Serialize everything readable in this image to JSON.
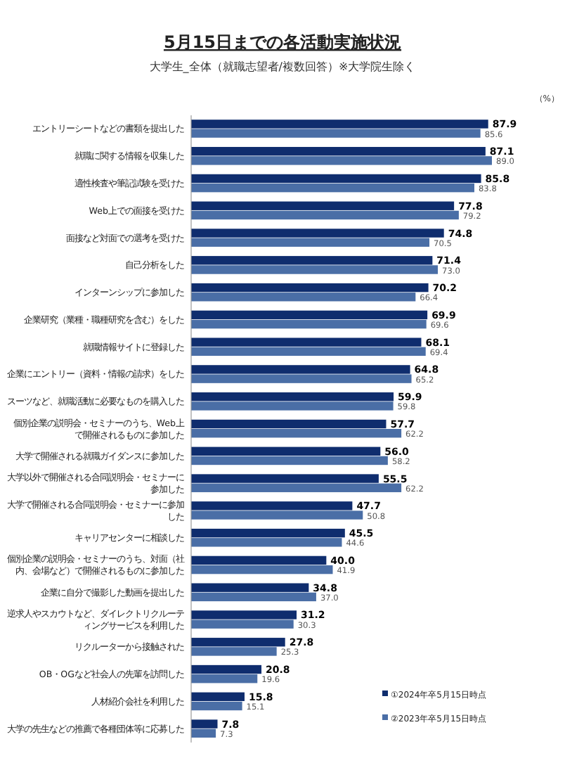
{
  "chart_data": {
    "type": "bar",
    "orientation": "horizontal",
    "title": "5月15日までの各活動実施状況",
    "subtitle": "大学生_全体（就職志望者/複数回答）※大学院生除く",
    "annotations": [
      "（%）"
    ],
    "categories": [
      "エントリーシートなどの書類を提出した",
      "就職に関する情報を収集した",
      "適性検査や筆記試験を受けた",
      "Web上での面接を受けた",
      "面接など対面での選考を受けた",
      "自己分析をした",
      "インターンシップに参加した",
      "企業研究（業種・職種研究を含む）をした",
      "就職情報サイトに登録した",
      "企業にエントリー（資料・情報の請求）をした",
      "スーツなど、就職活動に必要なものを購入した",
      "個別企業の説明会・セミナーのうち、Web上で開催されるものに参加した",
      "大学で開催される就職ガイダンスに参加した",
      "大学以外で開催される合同説明会・セミナーに参加した",
      "大学で開催される合同説明会・セミナーに参加した",
      "キャリアセンターに相談した",
      "個別企業の説明会・セミナーのうち、対面（社内、会場など）で開催されるものに参加した",
      "企業に自分で撮影した動画を提出した",
      "逆求人やスカウトなど、ダイレクトリクルーティングサービスを利用した",
      "リクルーターから接触された",
      "OB・OGなど社会人の先輩を訪問した",
      "人材紹介会社を利用した",
      "大学の先生などの推薦で各種団体等に応募した"
    ],
    "series": [
      {
        "name": "①2024年卒5月15日時点",
        "color": "#0f2d6e",
        "values": [
          87.9,
          87.1,
          85.8,
          77.8,
          74.8,
          71.4,
          70.2,
          69.9,
          68.1,
          64.8,
          59.9,
          57.7,
          56.0,
          55.5,
          47.7,
          45.5,
          40.0,
          34.8,
          31.2,
          27.8,
          20.8,
          15.8,
          7.8
        ],
        "value_labels": [
          "87.9",
          "87.1",
          "85.8",
          "77.8",
          "74.8",
          "71.4",
          "70.2",
          "69.9",
          "68.1",
          "64.8",
          "59.9",
          "57.7",
          "56.0",
          "55.5",
          "47.7",
          "45.5",
          "40.0",
          "34.8",
          "31.2",
          "27.8",
          "20.8",
          "15.8",
          "7.8"
        ]
      },
      {
        "name": "②2023年卒5月15日時点",
        "color": "#4a6ea6",
        "values": [
          85.6,
          89.0,
          83.8,
          79.2,
          70.5,
          73.0,
          66.4,
          69.6,
          69.4,
          65.2,
          59.8,
          62.2,
          58.2,
          62.2,
          50.8,
          44.6,
          41.9,
          37.0,
          30.3,
          25.3,
          19.6,
          15.1,
          7.3
        ],
        "value_labels": [
          "85.6",
          "89.0",
          "83.8",
          "79.2",
          "70.5",
          "73.0",
          "66.4",
          "69.6",
          "69.4",
          "65.2",
          "59.8",
          "62.2",
          "58.2",
          "62.2",
          "50.8",
          "44.6",
          "41.9",
          "37.0",
          "30.3",
          "25.3",
          "19.6",
          "15.1",
          "7.3"
        ]
      }
    ],
    "legend": "bottom right"
  }
}
